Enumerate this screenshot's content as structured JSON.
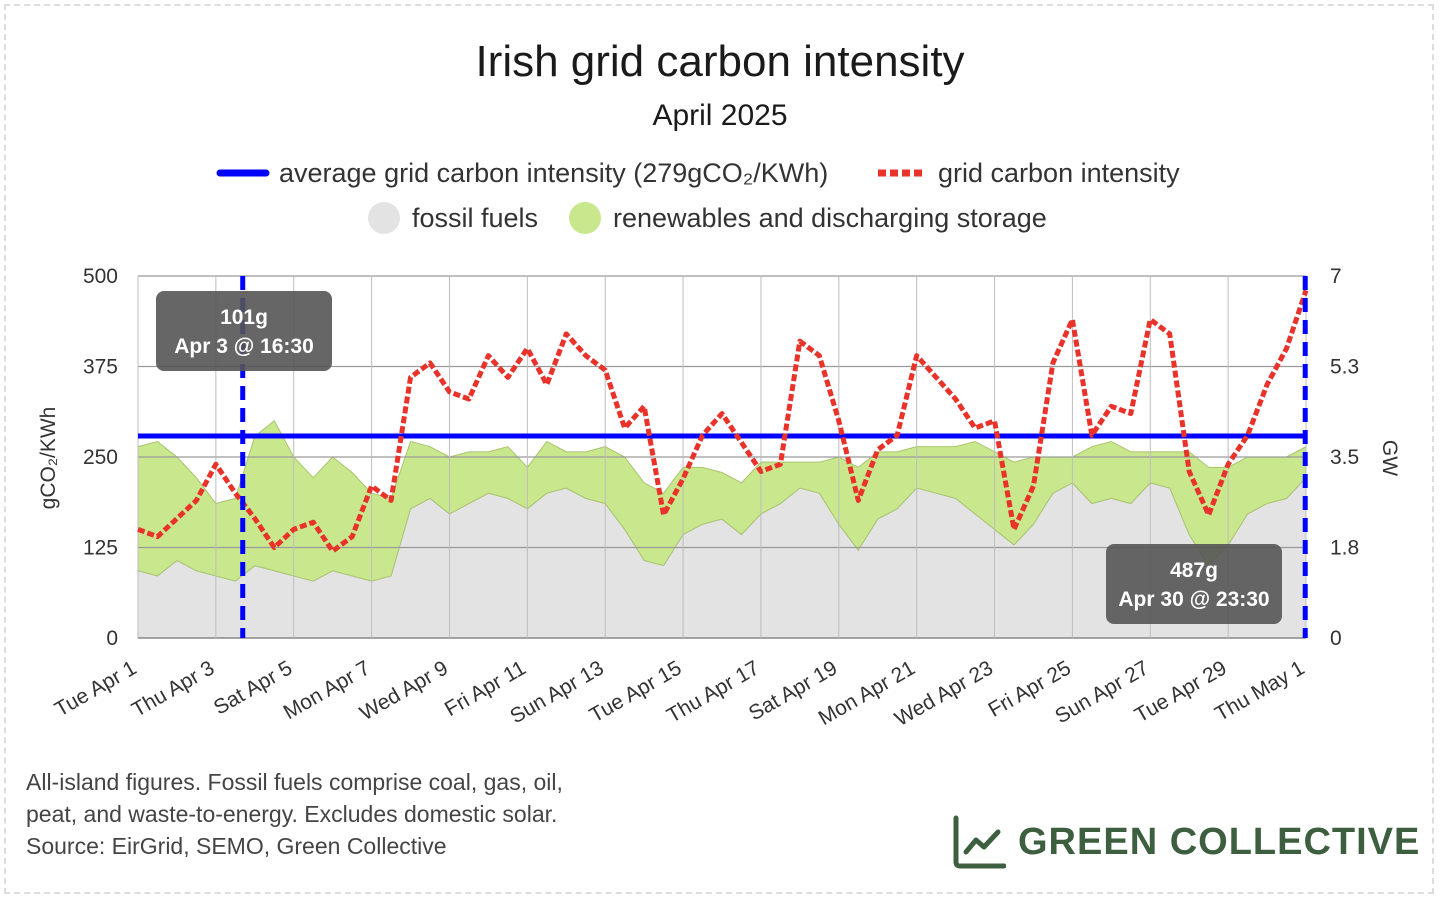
{
  "chart_data": {
    "type": "area",
    "title": "Irish grid carbon intensity",
    "subtitle": "April 2025",
    "ylabel_left": "gCO₂/KWh",
    "ylabel_right": "GW",
    "ylim_left": [
      0,
      500
    ],
    "ylim_right": [
      0,
      7
    ],
    "yticks_left": [
      "500",
      "375",
      "250",
      "125",
      "0"
    ],
    "yticks_right": [
      "7",
      "5.3",
      "3.5",
      "1.8",
      "0"
    ],
    "xticks": [
      "Tue Apr 1",
      "Thu Apr 3",
      "Sat Apr 5",
      "Mon Apr 7",
      "Wed Apr 9",
      "Fri Apr 11",
      "Sun Apr 13",
      "Tue Apr 15",
      "Thu Apr 17",
      "Sat Apr 19",
      "Mon Apr 21",
      "Wed Apr 23",
      "Fri Apr 25",
      "Sun Apr 27",
      "Tue Apr 29",
      "Thu May 1"
    ],
    "grid": true,
    "legend_position": "top",
    "legend": [
      {
        "label": "average grid carbon intensity (279gCO₂/KWh)",
        "style": "solid-line",
        "color": "#0000ff"
      },
      {
        "label": "grid carbon intensity",
        "style": "dotted-line",
        "color": "#e8322a"
      },
      {
        "label": "fossil fuels",
        "style": "area",
        "color": "#e3e3e3"
      },
      {
        "label": "renewables and discharging storage",
        "style": "area",
        "color": "#c9e88d"
      }
    ],
    "average": 279,
    "x_days": [
      0,
      0.5,
      1,
      1.5,
      2,
      2.5,
      3,
      3.5,
      4,
      4.5,
      5,
      5.5,
      6,
      6.5,
      7,
      7.5,
      8,
      8.5,
      9,
      9.5,
      10,
      10.5,
      11,
      11.5,
      12,
      12.5,
      13,
      13.5,
      14,
      14.5,
      15,
      15.5,
      16,
      16.5,
      17,
      17.5,
      18,
      18.5,
      19,
      19.5,
      20,
      20.5,
      21,
      21.5,
      22,
      22.5,
      23,
      23.5,
      24,
      24.5,
      25,
      25.5,
      26,
      26.5,
      27,
      27.5,
      28,
      28.5,
      29,
      29.5,
      30
    ],
    "series": [
      {
        "name": "grid carbon intensity",
        "unit": "gCO2/kWh",
        "values": [
          150,
          140,
          165,
          190,
          240,
          200,
          165,
          125,
          150,
          160,
          120,
          140,
          210,
          190,
          360,
          380,
          340,
          330,
          390,
          360,
          400,
          350,
          420,
          390,
          370,
          290,
          320,
          170,
          220,
          280,
          310,
          270,
          230,
          240,
          410,
          390,
          300,
          190,
          260,
          280,
          390,
          360,
          330,
          290,
          300,
          150,
          210,
          380,
          440,
          280,
          320,
          310,
          440,
          420,
          230,
          170,
          240,
          280,
          350,
          400,
          480
        ]
      },
      {
        "name": "fossil fuels",
        "unit": "GW",
        "values": [
          1.3,
          1.2,
          1.5,
          1.3,
          1.2,
          1.1,
          1.4,
          1.3,
          1.2,
          1.1,
          1.3,
          1.2,
          1.1,
          1.2,
          2.5,
          2.7,
          2.4,
          2.6,
          2.8,
          2.7,
          2.5,
          2.8,
          2.9,
          2.7,
          2.6,
          2.1,
          1.5,
          1.4,
          2.0,
          2.2,
          2.3,
          2.0,
          2.4,
          2.6,
          2.9,
          2.8,
          2.2,
          1.7,
          2.3,
          2.5,
          2.9,
          2.8,
          2.7,
          2.4,
          2.1,
          1.8,
          2.2,
          2.8,
          3.0,
          2.6,
          2.7,
          2.6,
          3.0,
          2.9,
          2.0,
          1.4,
          1.8,
          2.4,
          2.6,
          2.7,
          3.1
        ]
      },
      {
        "name": "renewables and discharging storage",
        "unit": "GW",
        "values": [
          2.4,
          2.6,
          2.0,
          1.8,
          1.4,
          1.6,
          2.5,
          2.9,
          2.3,
          2.0,
          2.2,
          2.0,
          1.7,
          1.5,
          1.3,
          1.0,
          1.1,
          1.0,
          0.8,
          1.0,
          0.8,
          1.0,
          0.7,
          0.9,
          1.1,
          1.4,
          1.5,
          1.4,
          1.3,
          1.1,
          0.9,
          1.0,
          1.0,
          0.8,
          0.5,
          0.6,
          1.3,
          1.6,
          1.3,
          1.1,
          0.8,
          0.9,
          1.0,
          1.4,
          1.5,
          1.6,
          1.3,
          0.7,
          0.5,
          1.1,
          1.1,
          1.0,
          0.6,
          0.7,
          1.6,
          1.9,
          1.5,
          1.1,
          0.9,
          0.8,
          0.6
        ]
      }
    ],
    "annotations": [
      {
        "marker": "min",
        "value_label": "101g",
        "time_label": "Apr 3 @ 16:30",
        "x_day": 2.69
      },
      {
        "marker": "max",
        "value_label": "487g",
        "time_label": "Apr 30 @ 23:30",
        "x_day": 29.98
      }
    ]
  },
  "footnote": [
    "All-island figures. Fossil fuels comprise coal, gas, oil,",
    "peat, and waste-to-energy. Excludes domestic solar.",
    "Source: EirGrid, SEMO, Green Collective"
  ],
  "brand": {
    "name": "GREEN COLLECTIVE",
    "icon": "chart-line-icon",
    "color": "#3d5e3f"
  },
  "colors": {
    "average_line": "#0000ff",
    "intensity_line": "#e8322a",
    "fossil": "#e3e3e3",
    "renewables": "#c9e88d",
    "tooltip_bg": "#555555"
  }
}
